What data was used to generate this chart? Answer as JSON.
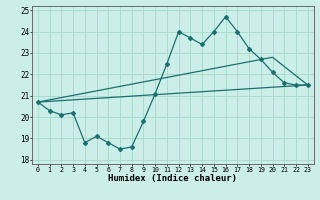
{
  "xlabel": "Humidex (Indice chaleur)",
  "bg_color": "#cceee8",
  "grid_color": "#aaddcc",
  "line_color": "#1a7070",
  "xlim": [
    -0.5,
    23.5
  ],
  "ylim": [
    17.8,
    25.2
  ],
  "yticks": [
    18,
    19,
    20,
    21,
    22,
    23,
    24,
    25
  ],
  "xticks": [
    0,
    1,
    2,
    3,
    4,
    5,
    6,
    7,
    8,
    9,
    10,
    11,
    12,
    13,
    14,
    15,
    16,
    17,
    18,
    19,
    20,
    21,
    22,
    23
  ],
  "series1_x": [
    0,
    1,
    2,
    3,
    4,
    5,
    6,
    7,
    8,
    9,
    10,
    11,
    12,
    13,
    14,
    15,
    16,
    17,
    18,
    19,
    20,
    21,
    22,
    23
  ],
  "series1_y": [
    20.7,
    20.3,
    20.1,
    20.2,
    18.8,
    19.1,
    18.8,
    18.5,
    18.6,
    19.8,
    21.1,
    22.5,
    24.0,
    23.7,
    23.4,
    24.0,
    24.7,
    24.0,
    23.2,
    22.7,
    22.1,
    21.6,
    21.5,
    21.5
  ],
  "series2_x": [
    0,
    23
  ],
  "series2_y": [
    20.7,
    21.5
  ],
  "series3_x": [
    0,
    20,
    23
  ],
  "series3_y": [
    20.7,
    22.8,
    21.5
  ]
}
